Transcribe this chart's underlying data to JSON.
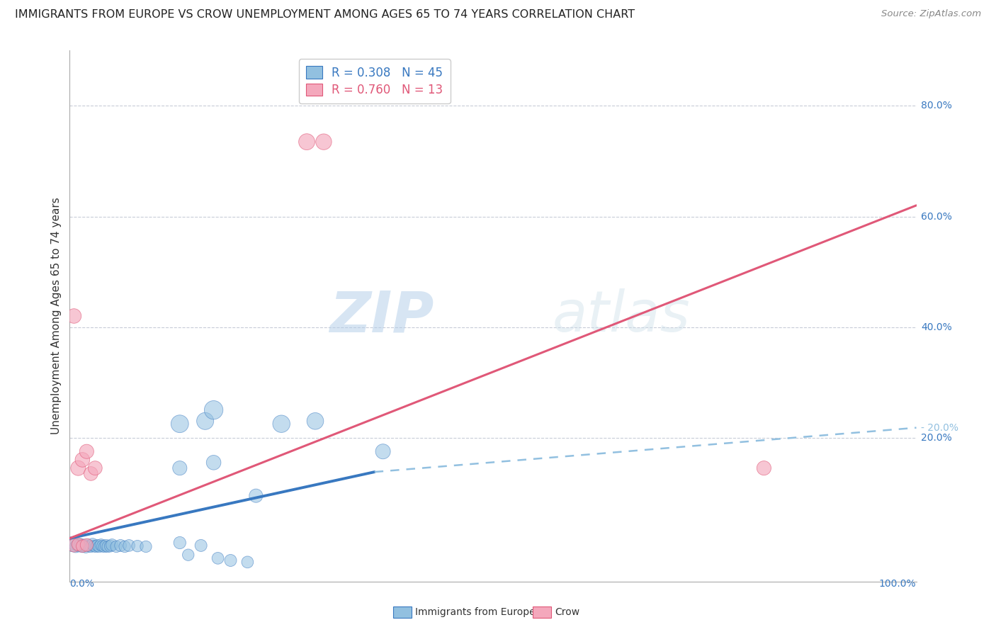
{
  "title": "IMMIGRANTS FROM EUROPE VS CROW UNEMPLOYMENT AMONG AGES 65 TO 74 YEARS CORRELATION CHART",
  "source_text": "Source: ZipAtlas.com",
  "ylabel": "Unemployment Among Ages 65 to 74 years",
  "xlim": [
    0,
    1.0
  ],
  "ylim": [
    0,
    0.9
  ],
  "watermark_zip": "ZIP",
  "watermark_atlas": "atlas",
  "blue_R": "0.308",
  "blue_N": "45",
  "pink_R": "0.760",
  "pink_N": "13",
  "blue_color": "#92c0e0",
  "pink_color": "#f4a8bc",
  "blue_line_color": "#3878c0",
  "pink_line_color": "#e05878",
  "grid_color": "#c8ccd8",
  "background_color": "#ffffff",
  "ytick_vals": [
    0.2,
    0.4,
    0.6,
    0.8
  ],
  "ytick_labels": [
    "20.0%",
    "40.0%",
    "60.0%",
    "80.0%"
  ],
  "blue_scatter": [
    [
      0.003,
      0.005
    ],
    [
      0.005,
      0.008
    ],
    [
      0.007,
      0.003
    ],
    [
      0.009,
      0.006
    ],
    [
      0.011,
      0.004
    ],
    [
      0.013,
      0.007
    ],
    [
      0.015,
      0.003
    ],
    [
      0.017,
      0.005
    ],
    [
      0.019,
      0.002
    ],
    [
      0.021,
      0.006
    ],
    [
      0.023,
      0.004
    ],
    [
      0.025,
      0.003
    ],
    [
      0.027,
      0.007
    ],
    [
      0.029,
      0.004
    ],
    [
      0.031,
      0.003
    ],
    [
      0.033,
      0.005
    ],
    [
      0.035,
      0.003
    ],
    [
      0.037,
      0.006
    ],
    [
      0.039,
      0.004
    ],
    [
      0.041,
      0.003
    ],
    [
      0.043,
      0.005
    ],
    [
      0.045,
      0.003
    ],
    [
      0.048,
      0.004
    ],
    [
      0.05,
      0.006
    ],
    [
      0.055,
      0.003
    ],
    [
      0.06,
      0.005
    ],
    [
      0.065,
      0.003
    ],
    [
      0.07,
      0.005
    ],
    [
      0.08,
      0.004
    ],
    [
      0.09,
      0.003
    ],
    [
      0.13,
      0.225
    ],
    [
      0.16,
      0.23
    ],
    [
      0.17,
      0.25
    ],
    [
      0.25,
      0.225
    ],
    [
      0.29,
      0.23
    ],
    [
      0.13,
      0.145
    ],
    [
      0.17,
      0.155
    ],
    [
      0.22,
      0.095
    ],
    [
      0.37,
      0.175
    ],
    [
      0.13,
      0.01
    ],
    [
      0.155,
      0.005
    ],
    [
      0.175,
      -0.018
    ],
    [
      0.19,
      -0.022
    ],
    [
      0.21,
      -0.025
    ],
    [
      0.14,
      -0.012
    ]
  ],
  "blue_scatter_sizes": [
    160,
    160,
    150,
    155,
    145,
    150,
    145,
    155,
    140,
    150,
    145,
    140,
    155,
    145,
    140,
    150,
    140,
    150,
    145,
    140,
    148,
    140,
    145,
    150,
    140,
    148,
    140,
    145,
    140,
    138,
    320,
    300,
    360,
    310,
    290,
    210,
    220,
    190,
    230,
    155,
    150,
    145,
    150,
    145,
    140
  ],
  "pink_scatter": [
    [
      0.005,
      0.42
    ],
    [
      0.01,
      0.145
    ],
    [
      0.015,
      0.16
    ],
    [
      0.02,
      0.175
    ],
    [
      0.025,
      0.135
    ],
    [
      0.03,
      0.145
    ],
    [
      0.28,
      0.735
    ],
    [
      0.3,
      0.735
    ],
    [
      0.82,
      0.145
    ],
    [
      0.005,
      0.005
    ],
    [
      0.01,
      0.007
    ],
    [
      0.015,
      0.004
    ],
    [
      0.02,
      0.006
    ]
  ],
  "pink_scatter_sizes": [
    220,
    230,
    220,
    210,
    200,
    205,
    270,
    260,
    210,
    175,
    165,
    160,
    170
  ],
  "blue_trendline_solid": [
    [
      0.0,
      0.018
    ],
    [
      0.36,
      0.138
    ]
  ],
  "blue_trendline_dashed": [
    [
      0.36,
      0.138
    ],
    [
      1.0,
      0.218
    ]
  ],
  "pink_trendline": [
    [
      0.0,
      0.018
    ],
    [
      1.0,
      0.62
    ]
  ]
}
